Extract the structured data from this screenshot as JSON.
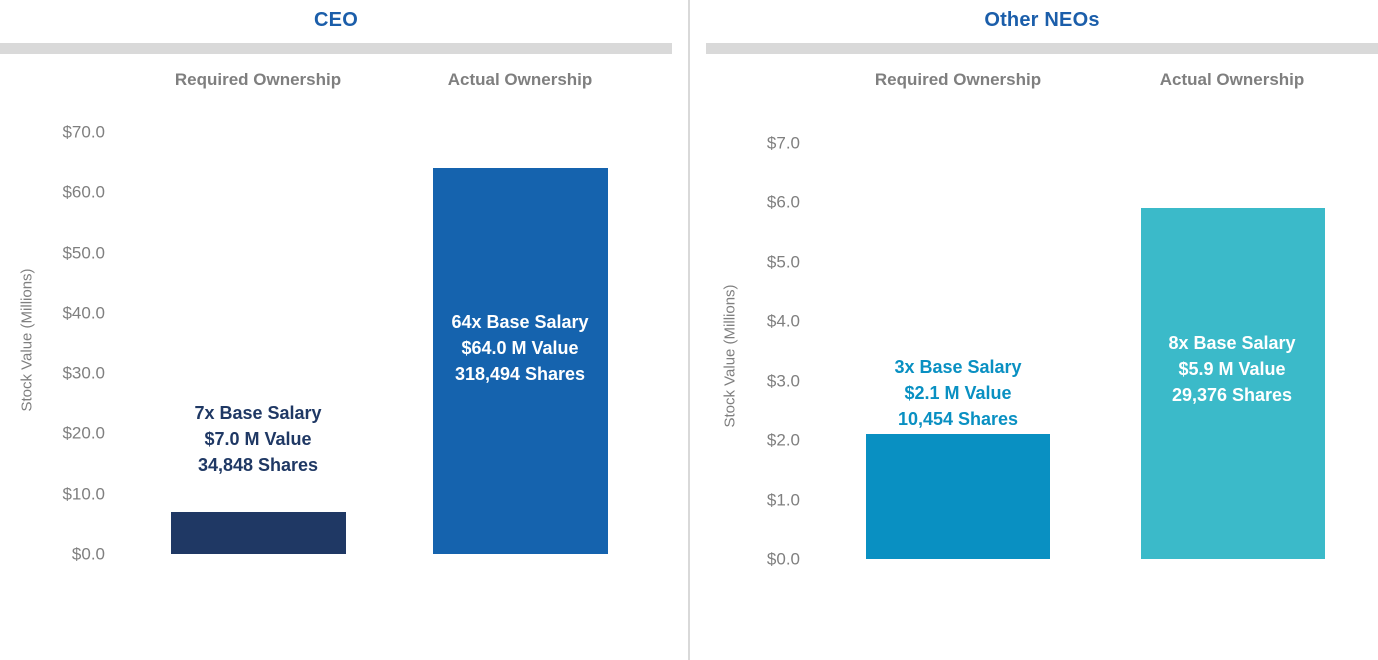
{
  "theme": {
    "background": "#FFFFFF",
    "axis_text_color": "#7F7F7F",
    "band_color": "#D9D9D9",
    "divider_color": "#D9D9D9"
  },
  "chart_data": [
    {
      "type": "bar",
      "title": "CEO",
      "title_color": "#1B5EAA",
      "ylabel": "Stock Value (Millions)",
      "categories": [
        "Required Ownership",
        "Actual Ownership"
      ],
      "values": [
        7.0,
        64.0
      ],
      "ylim": [
        0,
        70
      ],
      "yticks": [
        "$0.0",
        "$10.0",
        "$20.0",
        "$30.0",
        "$40.0",
        "$50.0",
        "$60.0",
        "$70.0"
      ],
      "grid": false,
      "legend": false,
      "bars": [
        {
          "category": "Required Ownership",
          "value": 7.0,
          "color": "#1F3864",
          "label_position": "above-bar",
          "label_color": "#1F3864",
          "label_lines": [
            "7x Base Salary",
            "$7.0 M Value",
            "34,848 Shares"
          ]
        },
        {
          "category": "Actual Ownership",
          "value": 64.0,
          "color": "#1563AE",
          "label_position": "inside-bar",
          "label_color": "#FFFFFF",
          "label_lines": [
            "64x Base Salary",
            "$64.0 M Value",
            "318,494 Shares"
          ]
        }
      ]
    },
    {
      "type": "bar",
      "title": "Other NEOs",
      "title_color": "#1B5EAA",
      "ylabel": "Stock Value (Millions)",
      "categories": [
        "Required Ownership",
        "Actual Ownership"
      ],
      "values": [
        2.1,
        5.9
      ],
      "ylim": [
        0,
        7
      ],
      "yticks": [
        "$0.0",
        "$1.0",
        "$2.0",
        "$3.0",
        "$4.0",
        "$5.0",
        "$6.0",
        "$7.0"
      ],
      "grid": false,
      "legend": false,
      "bars": [
        {
          "category": "Required Ownership",
          "value": 2.1,
          "color": "#0990C2",
          "label_position": "above-bar",
          "label_color": "#0990C2",
          "label_lines": [
            "3x Base Salary",
            "$2.1 M Value",
            "10,454 Shares"
          ]
        },
        {
          "category": "Actual Ownership",
          "value": 5.9,
          "color": "#3BBAC9",
          "label_position": "inside-bar",
          "label_color": "#FFFFFF",
          "label_lines": [
            "8x Base Salary",
            "$5.9 M Value",
            "29,376 Shares"
          ]
        }
      ]
    }
  ]
}
